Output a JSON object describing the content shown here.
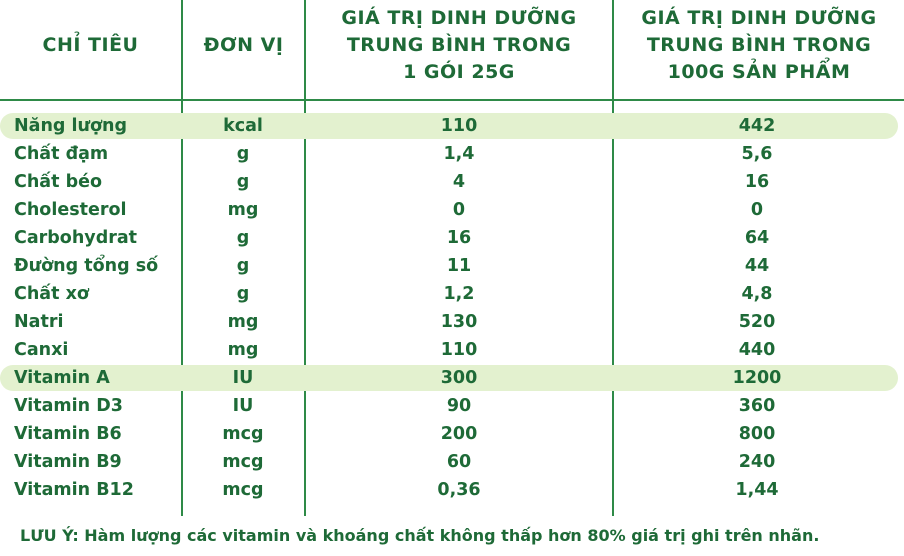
{
  "header": {
    "col_indicator": "CHỈ TIÊU",
    "col_unit": "ĐƠN VỊ",
    "col_per_pack": [
      "GIÁ TRỊ DINH DƯỠNG",
      "TRUNG BÌNH TRONG",
      "1 GÓI 25G"
    ],
    "col_per_100g": [
      "GIÁ TRỊ DINH DƯỠNG",
      "TRUNG BÌNH TRONG",
      "100G SẢN PHẨM"
    ]
  },
  "rows": [
    {
      "name": "Năng lượng",
      "unit": "kcal",
      "per_pack": "110",
      "per_100g": "442",
      "highlight": true
    },
    {
      "name": "Chất đạm",
      "unit": "g",
      "per_pack": "1,4",
      "per_100g": "5,6",
      "highlight": false
    },
    {
      "name": "Chất béo",
      "unit": "g",
      "per_pack": "4",
      "per_100g": "16",
      "highlight": false
    },
    {
      "name": "Cholesterol",
      "unit": "mg",
      "per_pack": "0",
      "per_100g": "0",
      "highlight": false
    },
    {
      "name": "Carbohydrat",
      "unit": "g",
      "per_pack": "16",
      "per_100g": "64",
      "highlight": false
    },
    {
      "name": "Đường tổng số",
      "unit": "g",
      "per_pack": "11",
      "per_100g": "44",
      "highlight": false
    },
    {
      "name": "Chất xơ",
      "unit": "g",
      "per_pack": "1,2",
      "per_100g": "4,8",
      "highlight": false
    },
    {
      "name": "Natri",
      "unit": "mg",
      "per_pack": "130",
      "per_100g": "520",
      "highlight": false
    },
    {
      "name": "Canxi",
      "unit": "mg",
      "per_pack": "110",
      "per_100g": "440",
      "highlight": false
    },
    {
      "name": "Vitamin A",
      "unit": "IU",
      "per_pack": "300",
      "per_100g": "1200",
      "highlight": true
    },
    {
      "name": "Vitamin D3",
      "unit": "IU",
      "per_pack": "90",
      "per_100g": "360",
      "highlight": false
    },
    {
      "name": "Vitamin B6",
      "unit": "mcg",
      "per_pack": "200",
      "per_100g": "800",
      "highlight": false
    },
    {
      "name": "Vitamin B9",
      "unit": "mcg",
      "per_pack": "60",
      "per_100g": "240",
      "highlight": false
    },
    {
      "name": "Vitamin B12",
      "unit": "mcg",
      "per_pack": "0,36",
      "per_100g": "1,44",
      "highlight": false
    }
  ],
  "note": "LƯU Ý: Hàm lượng các vitamin và khoáng chất không thấp hơn 80% giá trị ghi trên nhãn.",
  "colors": {
    "text": "#1e6a37",
    "lines": "#2e8a47",
    "highlight": "#e3f1cf"
  }
}
